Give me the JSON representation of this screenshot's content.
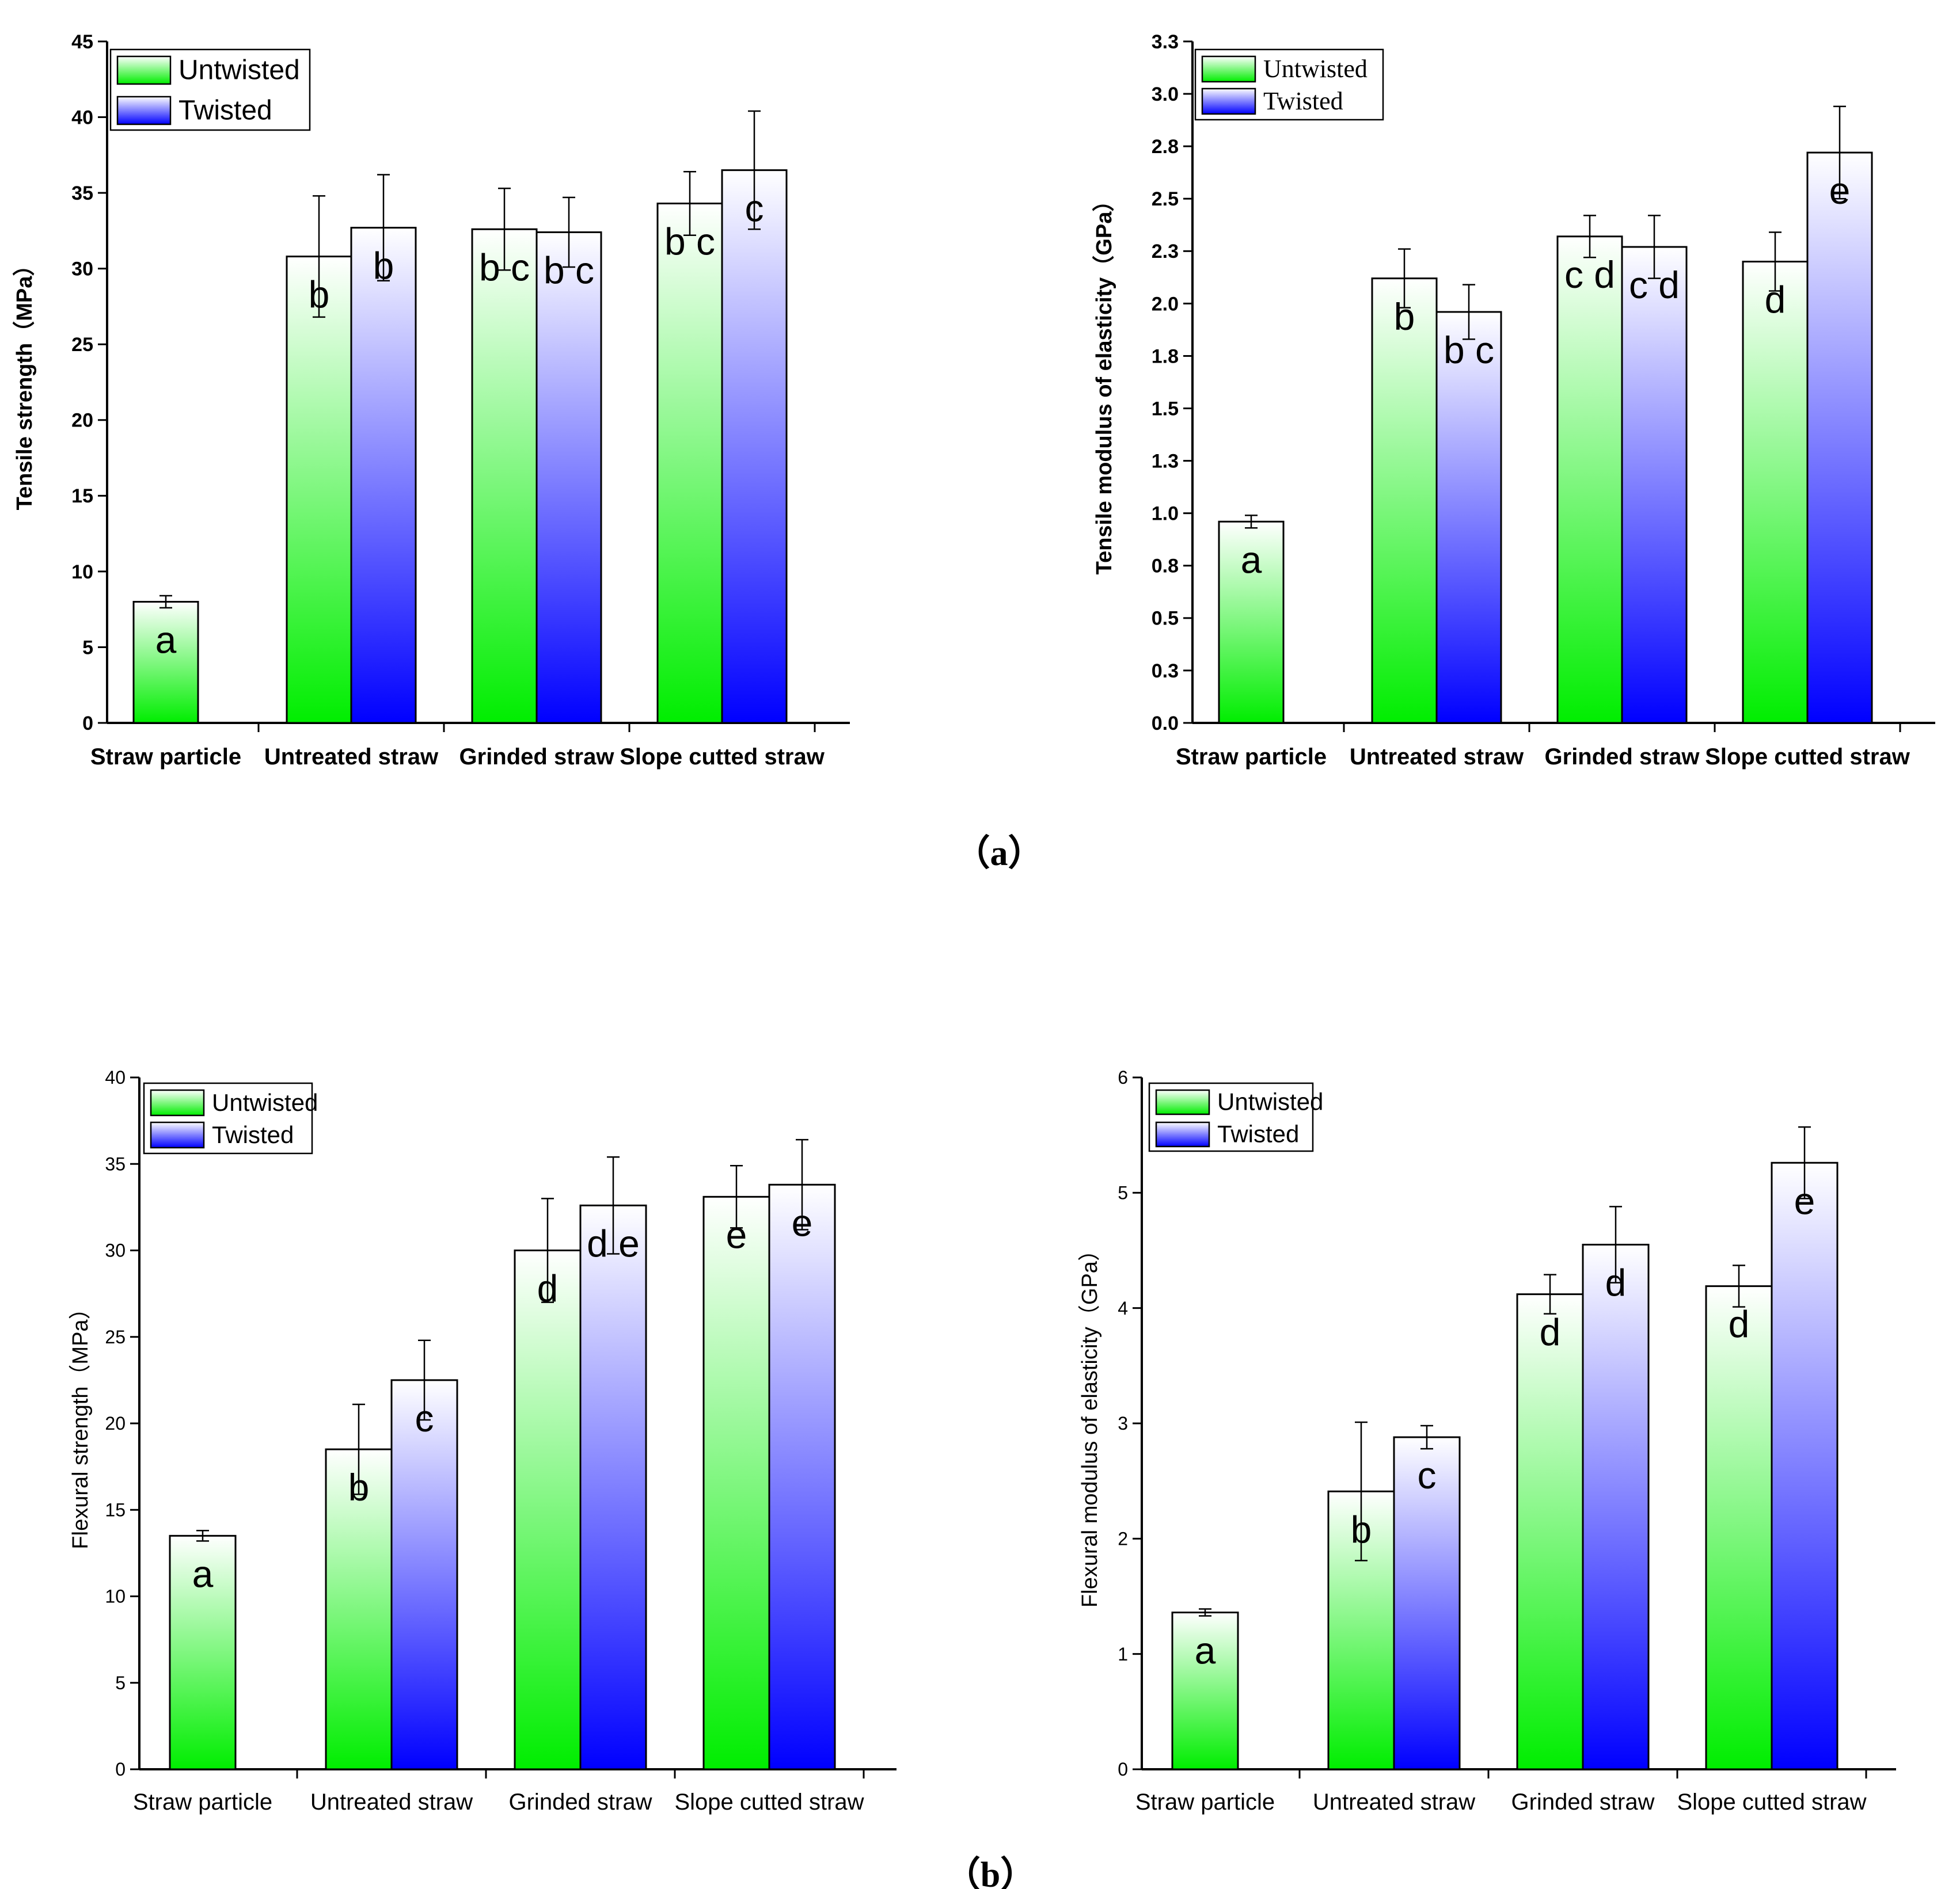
{
  "figure_labels": {
    "a": "（a）",
    "b": "（b）"
  },
  "colors": {
    "untwisted_top": "#ffffff",
    "untwisted_bottom": "#00ee00",
    "twisted_top": "#ffffff",
    "twisted_bottom": "#0000ff"
  },
  "chart_data": [
    {
      "type": "bar",
      "title": "",
      "xlabel": "",
      "ylabel": "Tensile strength（MPa）",
      "categories": [
        "Straw particle",
        "Untreated straw",
        "Grinded straw",
        "Slope cutted straw"
      ],
      "ylim": [
        0,
        45
      ],
      "yticks": [
        "0",
        "5",
        "10",
        "15",
        "20",
        "25",
        "30",
        "35",
        "40",
        "45"
      ],
      "legend_position": "top-left",
      "series": [
        {
          "name": "Untwisted",
          "values": [
            8.0,
            30.8,
            32.6,
            34.3
          ],
          "errors": [
            0.4,
            4.0,
            2.7,
            2.1
          ],
          "letters": [
            "a",
            "b",
            "b c",
            "b c"
          ]
        },
        {
          "name": "Twisted",
          "values": [
            null,
            32.7,
            32.4,
            36.5
          ],
          "errors": [
            null,
            3.5,
            2.3,
            3.9
          ],
          "letters": [
            null,
            "b",
            "b c",
            "c"
          ]
        }
      ]
    },
    {
      "type": "bar",
      "title": "",
      "xlabel": "",
      "ylabel": "Tensile modulus of elasticity（GPa）",
      "categories": [
        "Straw particle",
        "Untreated straw",
        "Grinded straw",
        "Slope cutted straw"
      ],
      "ylim": [
        0,
        3.25
      ],
      "yticks": [
        "0.0",
        "0.3",
        "0.5",
        "0.8",
        "1.0",
        "1.3",
        "1.5",
        "1.8",
        "2.0",
        "2.3",
        "2.5",
        "2.8",
        "3.0",
        "3.3"
      ],
      "legend_position": "top-left",
      "series": [
        {
          "name": "Untwisted",
          "values": [
            0.96,
            2.12,
            2.32,
            2.2
          ],
          "errors": [
            0.03,
            0.14,
            0.1,
            0.14
          ],
          "letters": [
            "a",
            "b",
            "c d",
            "d"
          ]
        },
        {
          "name": "Twisted",
          "values": [
            null,
            1.96,
            2.27,
            2.72
          ],
          "errors": [
            null,
            0.13,
            0.15,
            0.22
          ],
          "letters": [
            null,
            "b c",
            "c d",
            "e"
          ]
        }
      ]
    },
    {
      "type": "bar",
      "title": "",
      "xlabel": "",
      "ylabel": "Flexural strength（MPa）",
      "categories": [
        "Straw particle",
        "Untreated straw",
        "Grinded straw",
        "Slope cutted straw"
      ],
      "ylim": [
        0,
        40
      ],
      "yticks": [
        "0",
        "5",
        "10",
        "15",
        "20",
        "25",
        "30",
        "35",
        "40"
      ],
      "legend_position": "top-left",
      "series": [
        {
          "name": "Untwisted",
          "values": [
            13.5,
            18.5,
            30.0,
            33.1
          ],
          "errors": [
            0.3,
            2.6,
            3.0,
            1.8
          ],
          "letters": [
            "a",
            "b",
            "d",
            "e"
          ]
        },
        {
          "name": "Twisted",
          "values": [
            null,
            22.5,
            32.6,
            33.8
          ],
          "errors": [
            null,
            2.3,
            2.8,
            2.6
          ],
          "letters": [
            null,
            "c",
            "d e",
            "e"
          ]
        }
      ]
    },
    {
      "type": "bar",
      "title": "",
      "xlabel": "",
      "ylabel": "Flexural modulus of elasticity（GPa）",
      "categories": [
        "Straw particle",
        "Untreated straw",
        "Grinded straw",
        "Slope cutted straw"
      ],
      "ylim": [
        0,
        6
      ],
      "yticks": [
        "0",
        "1",
        "2",
        "3",
        "4",
        "5",
        "6"
      ],
      "legend_position": "top-left",
      "series": [
        {
          "name": "Untwisted",
          "values": [
            1.36,
            2.41,
            4.12,
            4.19
          ],
          "errors": [
            0.03,
            0.6,
            0.17,
            0.18
          ],
          "letters": [
            "a",
            "b",
            "d",
            "d"
          ]
        },
        {
          "name": "Twisted",
          "values": [
            null,
            2.88,
            4.55,
            5.26
          ],
          "errors": [
            null,
            0.1,
            0.33,
            0.31
          ],
          "letters": [
            null,
            "c",
            "d",
            "e"
          ]
        }
      ]
    }
  ]
}
